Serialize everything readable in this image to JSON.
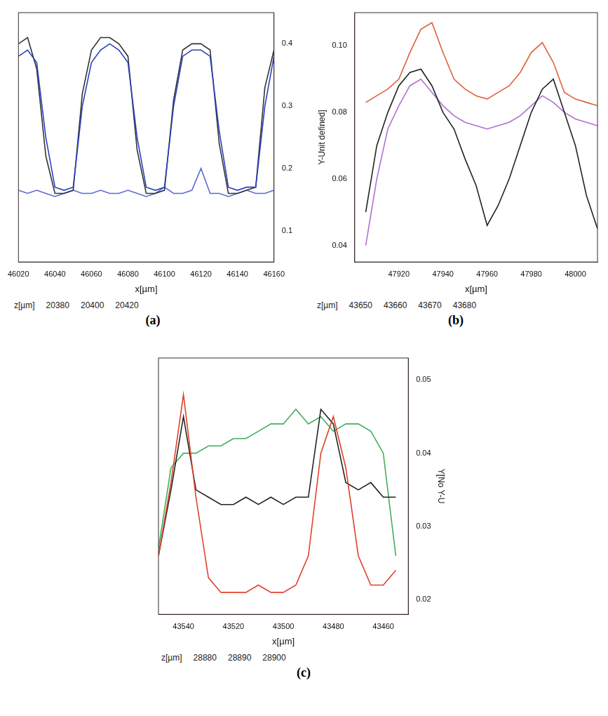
{
  "chart_data": [
    {
      "panel": "(a)",
      "type": "line",
      "x_label": "x[µm]",
      "z_label": "z[µm]",
      "z_ticks": [
        20380,
        20400,
        20420
      ],
      "grid": false,
      "x": [
        46020,
        46025,
        46030,
        46035,
        46040,
        46045,
        46050,
        46055,
        46060,
        46065,
        46070,
        46075,
        46080,
        46085,
        46090,
        46095,
        46100,
        46105,
        46110,
        46115,
        46120,
        46125,
        46130,
        46135,
        46140,
        46145,
        46150,
        46155,
        46160
      ],
      "series": [
        {
          "color": "#2b3fbf",
          "values": [
            0.38,
            0.39,
            0.37,
            0.25,
            0.17,
            0.165,
            0.17,
            0.3,
            0.37,
            0.39,
            0.4,
            0.39,
            0.37,
            0.25,
            0.17,
            0.165,
            0.17,
            0.3,
            0.38,
            0.39,
            0.39,
            0.38,
            0.26,
            0.17,
            0.165,
            0.17,
            0.17,
            0.3,
            0.38
          ]
        },
        {
          "color": "#333333",
          "values": [
            0.4,
            0.41,
            0.36,
            0.22,
            0.16,
            0.16,
            0.165,
            0.32,
            0.39,
            0.41,
            0.41,
            0.4,
            0.38,
            0.23,
            0.16,
            0.16,
            0.165,
            0.31,
            0.39,
            0.4,
            0.4,
            0.39,
            0.24,
            0.16,
            0.16,
            0.165,
            0.17,
            0.33,
            0.39
          ]
        },
        {
          "color": "#5a6acf",
          "values": [
            0.165,
            0.16,
            0.165,
            0.16,
            0.155,
            0.16,
            0.165,
            0.16,
            0.16,
            0.165,
            0.16,
            0.16,
            0.165,
            0.16,
            0.155,
            0.16,
            0.17,
            0.16,
            0.16,
            0.165,
            0.2,
            0.16,
            0.16,
            0.155,
            0.16,
            0.165,
            0.16,
            0.16,
            0.165
          ]
        }
      ],
      "xlim": [
        46020,
        46160
      ],
      "xticks": [
        46020,
        46040,
        46060,
        46080,
        46100,
        46120,
        46140,
        46160
      ],
      "ylim": [
        0.05,
        0.45
      ],
      "yticks": [
        0.1,
        0.2,
        0.3,
        0.4
      ]
    },
    {
      "panel": "(b)",
      "type": "line",
      "x_label": "x[µm]",
      "y_label": "Y-Unit defined]",
      "z_label": "z[µm]",
      "z_ticks": [
        43650,
        43660,
        43670,
        43680
      ],
      "grid": false,
      "x": [
        47905,
        47910,
        47915,
        47920,
        47925,
        47930,
        47935,
        47940,
        47945,
        47950,
        47955,
        47960,
        47965,
        47970,
        47975,
        47980,
        47985,
        47990,
        47995,
        48000,
        48005,
        48010
      ],
      "series": [
        {
          "color": "#222222",
          "values": [
            0.05,
            0.07,
            0.08,
            0.088,
            0.092,
            0.093,
            0.088,
            0.08,
            0.075,
            0.066,
            0.058,
            0.046,
            0.052,
            0.06,
            0.07,
            0.08,
            0.087,
            0.09,
            0.08,
            0.07,
            0.055,
            0.045
          ]
        },
        {
          "color": "#e0603a",
          "values": [
            0.083,
            0.085,
            0.087,
            0.09,
            0.098,
            0.105,
            0.107,
            0.098,
            0.09,
            0.087,
            0.085,
            0.084,
            0.086,
            0.088,
            0.092,
            0.098,
            0.101,
            0.095,
            0.086,
            0.084,
            0.083,
            0.082
          ]
        },
        {
          "color": "#b070d0",
          "values": [
            0.04,
            0.06,
            0.075,
            0.082,
            0.088,
            0.09,
            0.086,
            0.082,
            0.079,
            0.077,
            0.076,
            0.075,
            0.076,
            0.077,
            0.079,
            0.082,
            0.085,
            0.083,
            0.08,
            0.078,
            0.077,
            0.076
          ]
        }
      ],
      "xlim": [
        47900,
        48010
      ],
      "xticks": [
        47920,
        47940,
        47960,
        47980,
        48000
      ],
      "ylim": [
        0.035,
        0.11
      ],
      "yticks": [
        0.04,
        0.06,
        0.08,
        {
          "value": 0.1,
          "label": "0.10"
        }
      ]
    },
    {
      "panel": "(c)",
      "type": "line",
      "x_label": "x[µm]",
      "y_label": "Y[No Y-U",
      "z_label": "z[µm]",
      "z_ticks": [
        28880,
        28890,
        28900
      ],
      "grid": false,
      "x": [
        43550,
        43545,
        43540,
        43535,
        43530,
        43525,
        43520,
        43515,
        43510,
        43505,
        43500,
        43495,
        43490,
        43485,
        43480,
        43475,
        43470,
        43465,
        43460,
        43455
      ],
      "series": [
        {
          "color": "#e0402a",
          "values": [
            0.026,
            0.036,
            0.048,
            0.034,
            0.023,
            0.021,
            0.021,
            0.021,
            0.022,
            0.021,
            0.021,
            0.022,
            0.026,
            0.04,
            0.045,
            0.038,
            0.026,
            0.022,
            0.022,
            0.024
          ]
        },
        {
          "color": "#222222",
          "values": [
            0.026,
            0.035,
            0.045,
            0.035,
            0.034,
            0.033,
            0.033,
            0.034,
            0.033,
            0.034,
            0.033,
            0.034,
            0.034,
            0.046,
            0.044,
            0.036,
            0.035,
            0.036,
            0.034,
            0.034
          ]
        },
        {
          "color": "#3fae5a",
          "values": [
            0.027,
            0.038,
            0.04,
            0.04,
            0.041,
            0.041,
            0.042,
            0.042,
            0.043,
            0.044,
            0.044,
            0.046,
            0.044,
            0.045,
            0.043,
            0.044,
            0.044,
            0.043,
            0.04,
            0.026
          ]
        }
      ],
      "xlim": [
        43550,
        43450
      ],
      "xticks": [
        43540,
        43520,
        43500,
        43480,
        43460
      ],
      "ylim": [
        0.018,
        0.053
      ],
      "yticks": [
        0.02,
        0.03,
        0.04,
        0.05
      ]
    }
  ]
}
